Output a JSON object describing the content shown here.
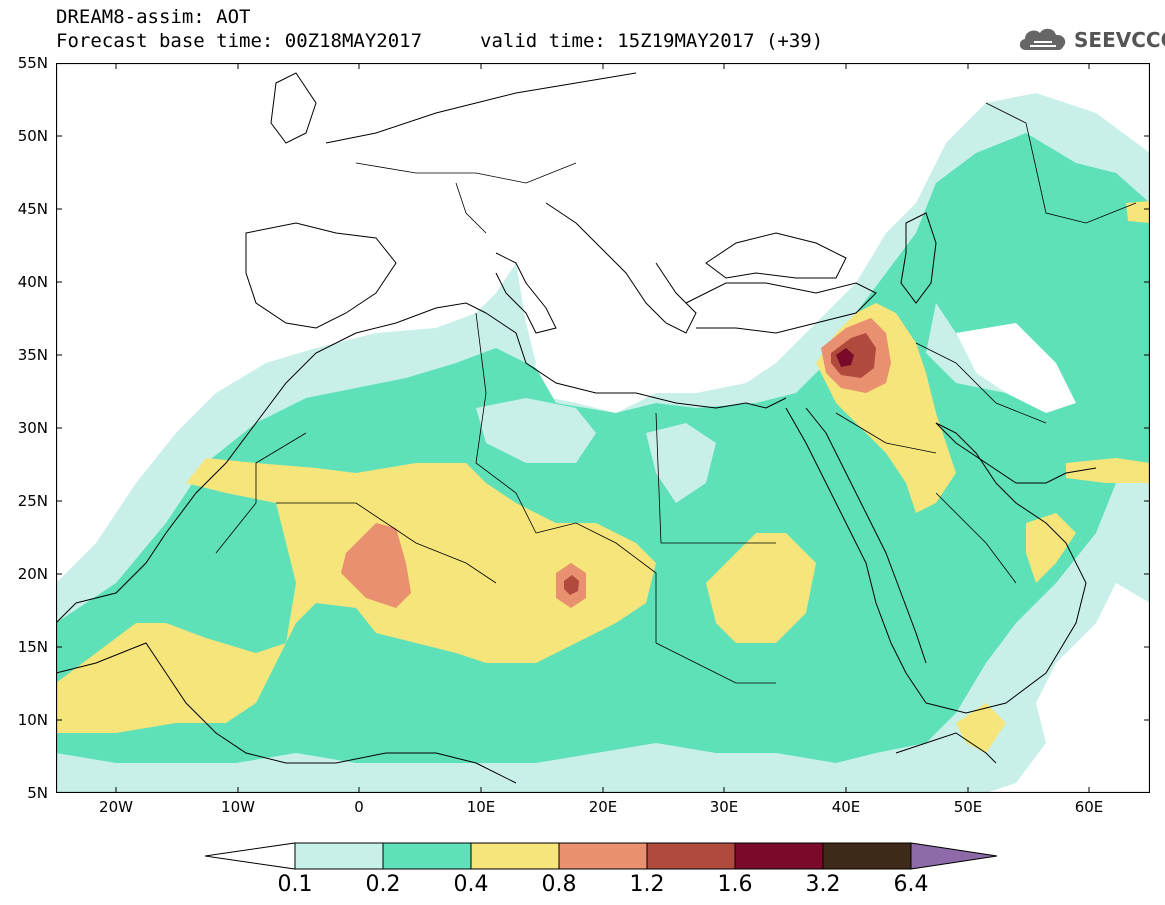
{
  "title": {
    "line1": "DREAM8-assim: AOT",
    "line2": "Forecast base time: 00Z18MAY2017",
    "valid": "valid time: 15Z19MAY2017 (+39)"
  },
  "logo": {
    "text": "SEEVCCC",
    "icon": "cloud-icon"
  },
  "map": {
    "lat_labels": [
      "55N",
      "50N",
      "45N",
      "40N",
      "35N",
      "30N",
      "25N",
      "20N",
      "15N",
      "10N",
      "5N"
    ],
    "lon_labels": [
      "20W",
      "10W",
      "0",
      "10E",
      "20E",
      "30E",
      "40E",
      "50E",
      "60E"
    ],
    "lon_range": [
      -25,
      65
    ],
    "lat_range": [
      5,
      55
    ]
  },
  "legend": {
    "labels": [
      "0.1",
      "0.2",
      "0.4",
      "0.8",
      "1.2",
      "1.6",
      "3.2",
      "6.4"
    ],
    "colors": [
      "#ffffff",
      "#c8f0e8",
      "#5ee0b8",
      "#f5e57a",
      "#e89070",
      "#b04a3c",
      "#7a0a2a",
      "#3e2a18",
      "#8e6aa8"
    ]
  }
}
